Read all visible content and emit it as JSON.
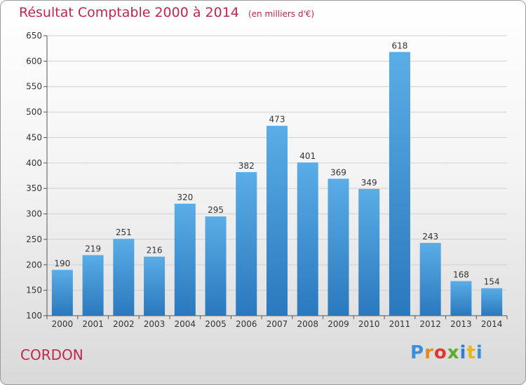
{
  "header": {
    "title": "Résultat Comptable 2000 à 2014",
    "subtitle": "(en milliers d'€)"
  },
  "footer": {
    "place": "CORDON",
    "brand": {
      "letters": [
        "P",
        "r",
        "o",
        "x",
        "i",
        "t",
        "i"
      ]
    }
  },
  "colors": {
    "title": "#c0264e",
    "bar_light": "#5aade6",
    "bar_dark": "#2a78be",
    "grid": "#d0d0d0",
    "axis": "#555555"
  },
  "chart_data": {
    "type": "bar",
    "title": "Résultat Comptable 2000 à 2014",
    "subtitle": "(en milliers d'€)",
    "categories": [
      "2000",
      "2001",
      "2002",
      "2003",
      "2004",
      "2005",
      "2006",
      "2007",
      "2008",
      "2009",
      "2010",
      "2011",
      "2012",
      "2013",
      "2014"
    ],
    "values": [
      190,
      219,
      251,
      216,
      320,
      295,
      382,
      473,
      401,
      369,
      349,
      618,
      243,
      168,
      154
    ],
    "ylim": [
      100,
      650
    ],
    "yticks": [
      100,
      150,
      200,
      250,
      300,
      350,
      400,
      450,
      500,
      550,
      600,
      650
    ],
    "grid": true,
    "data_labels": true
  }
}
